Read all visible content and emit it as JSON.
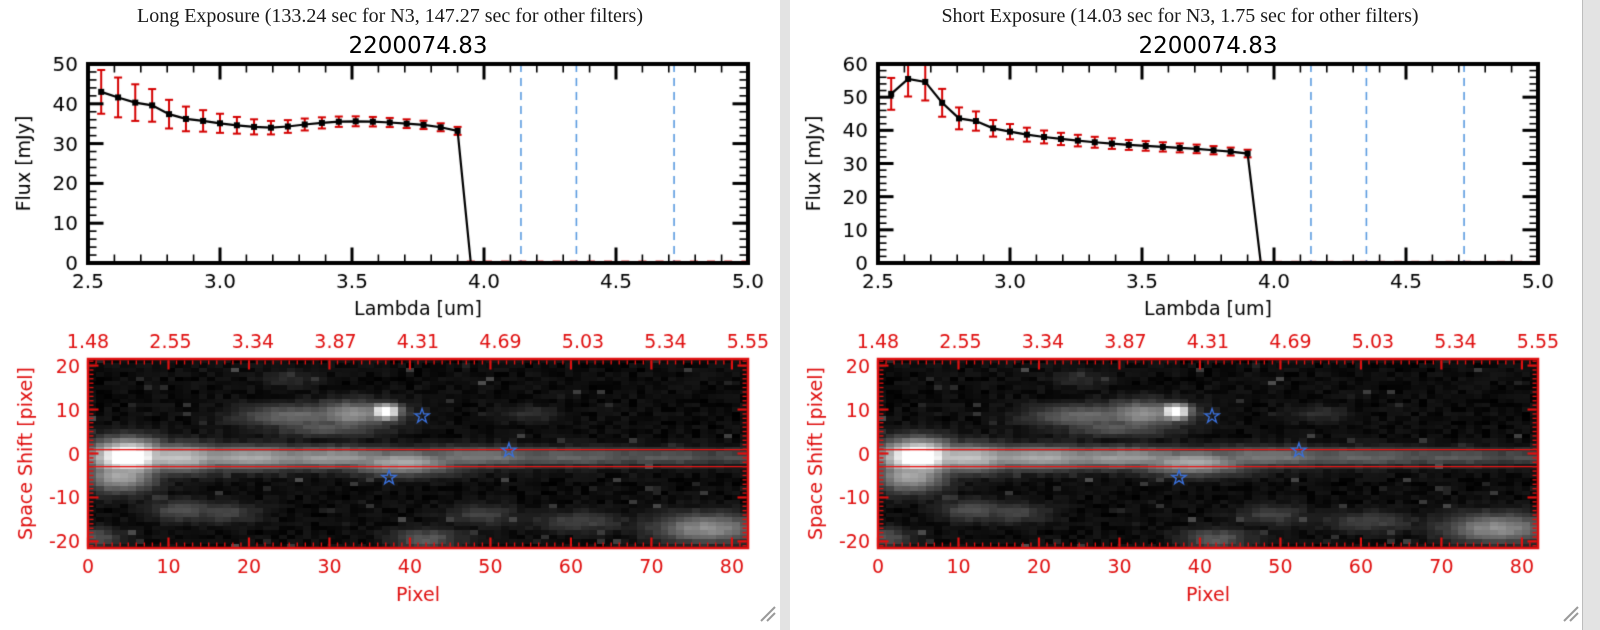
{
  "chart_data": [
    {
      "type": "line",
      "panel": "long-exposure",
      "header": "Long Exposure (133.24 sec for N3, 147.27 sec for other filters)",
      "title": "2200074.83",
      "xlabel": "Lambda [um]",
      "ylabel": "Flux [mJy]",
      "xlim": [
        2.5,
        5.0
      ],
      "ylim": [
        0,
        50
      ],
      "xticks": [
        "2.5",
        "3.0",
        "3.5",
        "4.0",
        "4.5",
        "5.0"
      ],
      "yticks": [
        "0",
        "10",
        "20",
        "30",
        "40",
        "50"
      ],
      "x_minor_step": 0.1,
      "y_minor_step": 2,
      "vlines_dashed_x": [
        4.14,
        4.35,
        4.72
      ],
      "x": [
        2.55,
        2.614,
        2.679,
        2.743,
        2.807,
        2.871,
        2.936,
        3.0,
        3.064,
        3.129,
        3.193,
        3.257,
        3.321,
        3.386,
        3.45,
        3.514,
        3.579,
        3.643,
        3.707,
        3.771,
        3.836,
        3.9,
        3.95,
        4.015,
        4.08,
        4.145,
        4.21,
        4.275,
        4.34,
        4.405,
        4.47,
        4.535,
        4.6,
        4.665,
        4.73,
        4.795,
        4.86,
        4.925,
        4.99
      ],
      "flux": [
        43.0,
        41.6,
        40.3,
        39.6,
        37.4,
        36.2,
        35.7,
        35.1,
        34.6,
        34.2,
        34.0,
        34.3,
        34.8,
        35.2,
        35.5,
        35.6,
        35.5,
        35.3,
        35.0,
        34.7,
        34.1,
        33.2,
        0,
        0,
        0,
        0,
        0,
        0,
        0,
        0,
        0,
        0,
        0,
        0,
        0,
        0,
        0,
        0,
        0
      ],
      "flux_err": [
        5.5,
        5.0,
        4.6,
        4.1,
        3.6,
        3.1,
        2.7,
        2.4,
        2.1,
        1.9,
        1.7,
        1.6,
        1.5,
        1.4,
        1.3,
        1.25,
        1.2,
        1.15,
        1.1,
        1.05,
        1.0,
        1.0,
        0.35,
        0.35,
        0.35,
        0.35,
        0.35,
        0.35,
        0.35,
        0.35,
        0.35,
        0.35,
        0.35,
        0.35,
        0.35,
        0.35,
        0.35,
        0.35,
        0.35
      ],
      "colors": {
        "line": "#000000",
        "error": "#d40000",
        "dashed": "#5b9be0"
      }
    },
    {
      "type": "line",
      "panel": "short-exposure",
      "header": "Short Exposure (14.03 sec for N3, 1.75 sec for other filters)",
      "title": "2200074.83",
      "xlabel": "Lambda [um]",
      "ylabel": "Flux [mJy]",
      "xlim": [
        2.5,
        5.0
      ],
      "ylim": [
        0,
        60
      ],
      "xticks": [
        "2.5",
        "3.0",
        "3.5",
        "4.0",
        "4.5",
        "5.0"
      ],
      "yticks": [
        "0",
        "10",
        "20",
        "30",
        "40",
        "50",
        "60"
      ],
      "x_minor_step": 0.1,
      "y_minor_step": 2,
      "vlines_dashed_x": [
        4.14,
        4.35,
        4.72
      ],
      "x": [
        2.55,
        2.614,
        2.679,
        2.743,
        2.807,
        2.871,
        2.936,
        3.0,
        3.064,
        3.129,
        3.193,
        3.257,
        3.321,
        3.386,
        3.45,
        3.514,
        3.579,
        3.643,
        3.707,
        3.771,
        3.836,
        3.9,
        3.95,
        4.015,
        4.08,
        4.145,
        4.21,
        4.275,
        4.34,
        4.405,
        4.47,
        4.535,
        4.6,
        4.665,
        4.73,
        4.795,
        4.86,
        4.925,
        4.99
      ],
      "flux": [
        51.0,
        55.5,
        54.6,
        48.3,
        43.6,
        42.8,
        40.6,
        39.6,
        38.7,
        38.0,
        37.4,
        36.9,
        36.4,
        36.0,
        35.6,
        35.3,
        35.0,
        34.7,
        34.4,
        34.0,
        33.6,
        33.0,
        0,
        0,
        0,
        0,
        0,
        0,
        0,
        0,
        0,
        0,
        0,
        0,
        0,
        0,
        0,
        0,
        0
      ],
      "flux_err": [
        4.8,
        5.3,
        5.6,
        4.2,
        3.3,
        2.9,
        2.5,
        2.3,
        2.1,
        1.95,
        1.85,
        1.75,
        1.65,
        1.6,
        1.5,
        1.45,
        1.4,
        1.35,
        1.3,
        1.25,
        1.2,
        1.15,
        0.35,
        0.35,
        0.35,
        0.35,
        0.35,
        0.35,
        0.35,
        0.35,
        0.35,
        0.35,
        0.35,
        0.35,
        0.35,
        0.35,
        0.35,
        0.35,
        0.35
      ],
      "colors": {
        "line": "#000000",
        "error": "#d40000",
        "dashed": "#5b9be0"
      }
    },
    {
      "type": "heatmap",
      "panel": "spatial-spectral-image",
      "xlabel": "Pixel",
      "ylabel": "Space Shift [pixel]",
      "xlim": [
        0,
        82
      ],
      "ylim": [
        -21.5,
        21.5
      ],
      "xticks": [
        0,
        10,
        20,
        30,
        40,
        50,
        60,
        70,
        80
      ],
      "yticks": [
        20,
        10,
        0,
        -10,
        -20
      ],
      "top_axis_labels": [
        "1.48",
        "2.55",
        "3.34",
        "3.87",
        "4.31",
        "4.69",
        "5.03",
        "5.34",
        "5.55"
      ],
      "grid": {
        "width": 83,
        "height": 43
      },
      "noise_seed": 7,
      "aperture_lines_y": [
        0.9,
        -3.0
      ],
      "stars": [
        {
          "x": 41.5,
          "y": 8.5
        },
        {
          "x": 52.3,
          "y": 0.7
        },
        {
          "x": 37.4,
          "y": -5.5
        }
      ],
      "blobs": [
        [
          5,
          -0.8,
          3.2,
          2.6,
          1.0
        ],
        [
          4,
          -5,
          3,
          2.5,
          0.5
        ],
        [
          11,
          -1,
          5,
          2.1,
          0.6
        ],
        [
          20,
          -1,
          7,
          1.8,
          0.5
        ],
        [
          30,
          -1,
          8,
          1.7,
          0.45
        ],
        [
          39,
          -2,
          5,
          1.9,
          0.5
        ],
        [
          48,
          -0.8,
          8,
          1.6,
          0.33
        ],
        [
          60,
          -0.8,
          9,
          1.5,
          0.26
        ],
        [
          71,
          -0.8,
          8,
          1.4,
          0.22
        ],
        [
          80,
          -0.8,
          5,
          1.4,
          0.18
        ],
        [
          26,
          8.5,
          5,
          1.8,
          0.28
        ],
        [
          33,
          9,
          4,
          2,
          0.4
        ],
        [
          37,
          9.5,
          1.2,
          1.2,
          1.0
        ],
        [
          30,
          6,
          5,
          1.5,
          0.22
        ],
        [
          12,
          -13,
          3,
          1.6,
          0.2
        ],
        [
          17,
          -13.5,
          3,
          1.6,
          0.16
        ],
        [
          49,
          -14,
          3,
          1.5,
          0.15
        ],
        [
          61,
          -15.5,
          4,
          1.6,
          0.15
        ],
        [
          77,
          -17,
          4.5,
          2.2,
          0.4
        ],
        [
          42,
          -19.5,
          3,
          1.6,
          0.22
        ],
        [
          1,
          -19,
          2,
          1.5,
          0.2
        ],
        [
          55,
          9,
          2.5,
          1.3,
          0.09
        ],
        [
          25,
          17,
          2.5,
          1.3,
          0.08
        ]
      ],
      "colors": {
        "axis": "#e01010",
        "labels": "#e01010",
        "aperture": "#ed1515",
        "star": "#3a6fd8",
        "background": "#000000"
      }
    }
  ]
}
